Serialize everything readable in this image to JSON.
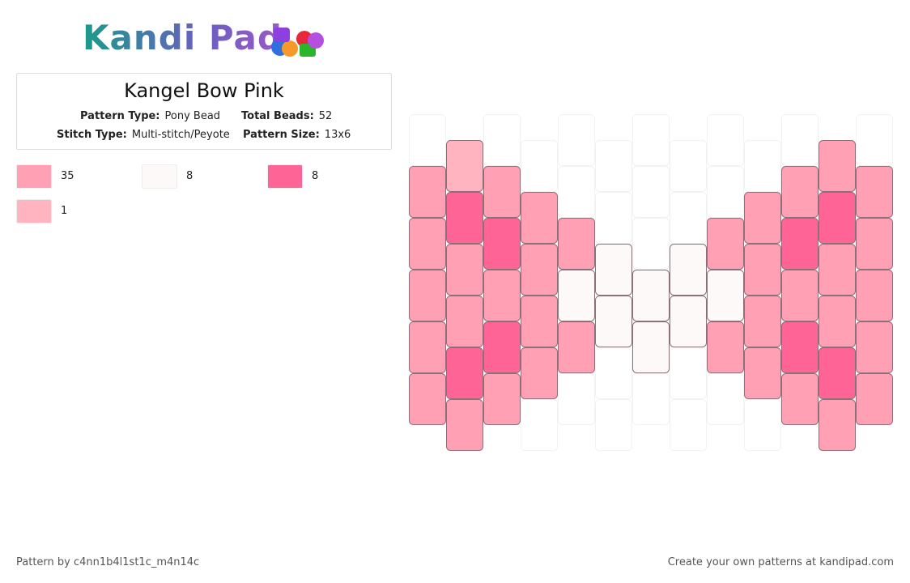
{
  "header": {
    "logo": "Kandi Pad"
  },
  "info": {
    "title": "Kangel Bow Pink",
    "pattern_type_label": "Pattern Type:",
    "pattern_type": "Pony Bead",
    "total_beads_label": "Total Beads:",
    "total_beads": 52,
    "stitch_type_label": "Stitch Type:",
    "stitch_type": "Multi-stitch/Peyote",
    "pattern_size_label": "Pattern Size:",
    "pattern_size": "13x6"
  },
  "legend": [
    {
      "color": "#ffa0b4",
      "count": 35
    },
    {
      "color": "#fdf9f8",
      "count": 8
    },
    {
      "color": "#ff6496",
      "count": 8
    },
    {
      "color": "#ffb4c0",
      "count": 1
    }
  ],
  "pattern": {
    "columns": [
      [
        null,
        "#ffa0b4",
        "#ffa0b4",
        "#ffa0b4",
        "#ffa0b4",
        "#ffa0b4"
      ],
      [
        "#ffb4c0",
        "#ff6496",
        "#ffa0b4",
        "#ffa0b4",
        "#ff6496",
        "#ffa0b4"
      ],
      [
        null,
        "#ffa0b4",
        "#ff6496",
        "#ffa0b4",
        "#ff6496",
        "#ffa0b4"
      ],
      [
        null,
        "#ffa0b4",
        "#ffa0b4",
        "#ffa0b4",
        "#ffa0b4",
        null
      ],
      [
        null,
        null,
        "#ffa0b4",
        "#fdf9f8",
        "#ffa0b4",
        null
      ],
      [
        null,
        null,
        "#fdf9f8",
        "#fdf9f8",
        null,
        null
      ],
      [
        null,
        null,
        null,
        "#fdf9f8",
        "#fdf9f8",
        null
      ],
      [
        null,
        null,
        "#fdf9f8",
        "#fdf9f8",
        null,
        null
      ],
      [
        null,
        null,
        "#ffa0b4",
        "#fdf9f8",
        "#ffa0b4",
        null
      ],
      [
        null,
        "#ffa0b4",
        "#ffa0b4",
        "#ffa0b4",
        "#ffa0b4",
        null
      ],
      [
        null,
        "#ffa0b4",
        "#ff6496",
        "#ffa0b4",
        "#ff6496",
        "#ffa0b4"
      ],
      [
        "#ffa0b4",
        "#ff6496",
        "#ffa0b4",
        "#ffa0b4",
        "#ff6496",
        "#ffa0b4"
      ],
      [
        null,
        "#ffa0b4",
        "#ffa0b4",
        "#ffa0b4",
        "#ffa0b4",
        "#ffa0b4"
      ]
    ]
  },
  "footer": {
    "author": "Pattern by c4nn1b4l1st1c_m4n14c",
    "promo": "Create your own patterns at kandipad.com"
  }
}
